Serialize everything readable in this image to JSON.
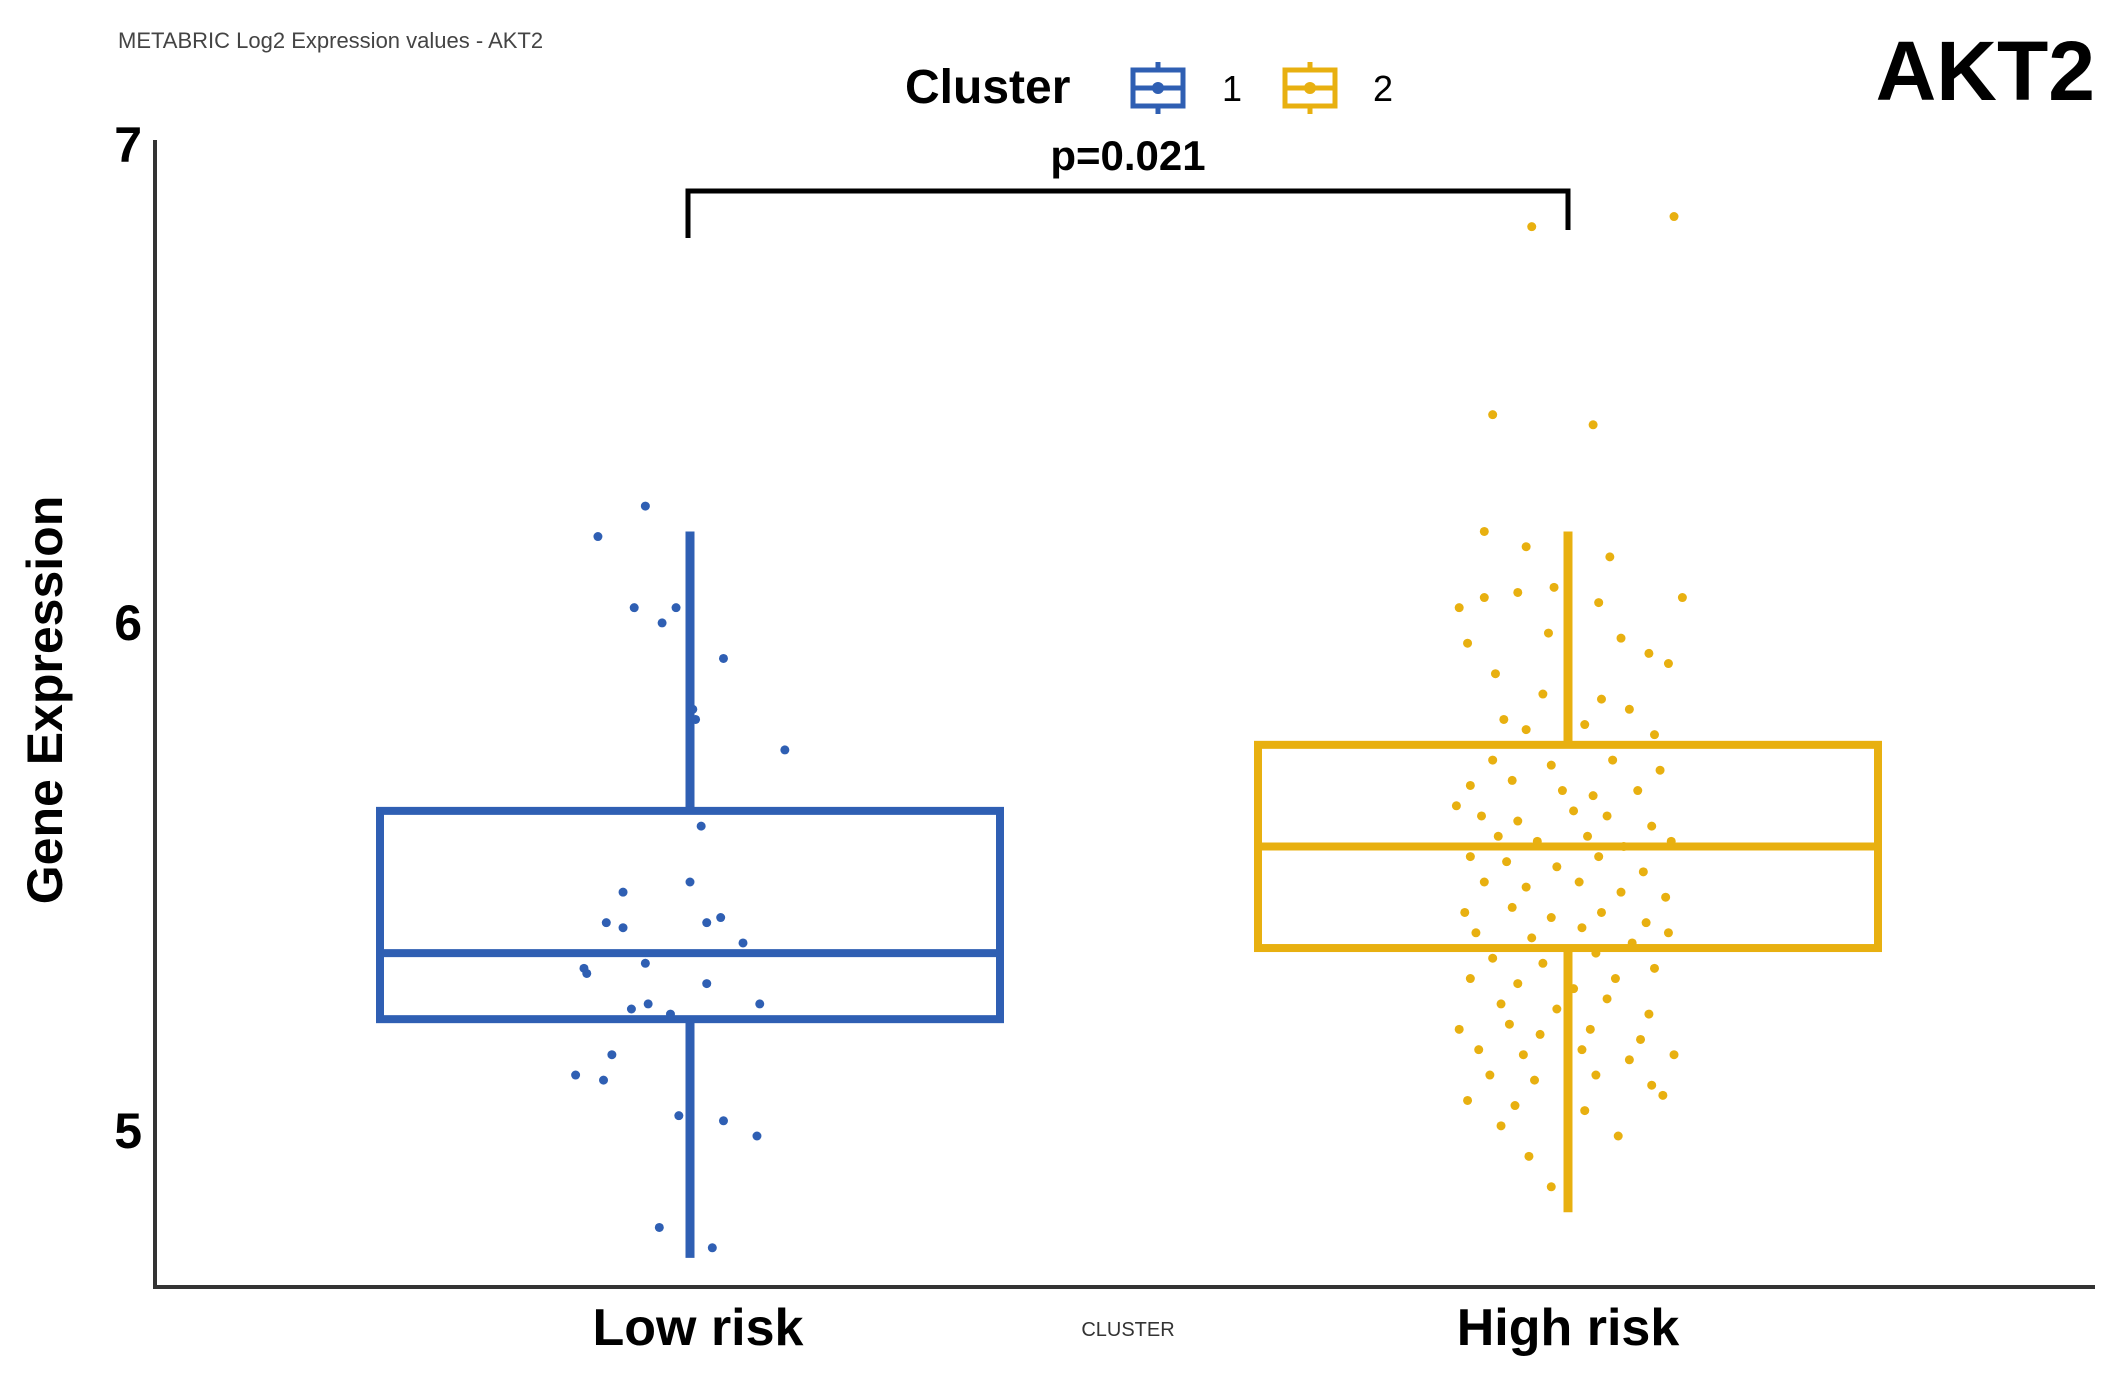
{
  "chart_data": {
    "type": "box",
    "subtitle": "METABRIC Log2 Expression values - AKT2",
    "title": "AKT2",
    "xlabel": "CLUSTER",
    "ylabel": "Gene Expression",
    "ylim": [
      4.7,
      7.0
    ],
    "yticks": [
      "5",
      "6",
      "7"
    ],
    "categories": [
      "Low risk",
      "High risk"
    ],
    "legend": {
      "title": "Cluster",
      "entries": [
        "1",
        "2"
      ],
      "placement": "top-center"
    },
    "colors": [
      "#2f5fb3",
      "#e8b010"
    ],
    "annotation": {
      "text": "p=0.021",
      "between": [
        "Low risk",
        "High risk"
      ]
    },
    "boxes": [
      {
        "name": "Low risk",
        "cluster": "1",
        "whisker_low": 4.76,
        "q1": 5.23,
        "median": 5.36,
        "q3": 5.64,
        "whisker_high": 6.19
      },
      {
        "name": "High risk",
        "cluster": "2",
        "whisker_low": 4.85,
        "q1": 5.37,
        "median": 5.57,
        "q3": 5.77,
        "whisker_high": 6.19
      }
    ],
    "points": [
      [
        [
          -0.33,
          6.18
        ],
        [
          -0.16,
          6.24
        ],
        [
          -0.2,
          6.04
        ],
        [
          -0.05,
          6.04
        ],
        [
          -0.1,
          6.01
        ],
        [
          0.12,
          5.94
        ],
        [
          0.01,
          5.84
        ],
        [
          0.02,
          5.82
        ],
        [
          0.34,
          5.76
        ],
        [
          0.04,
          5.61
        ],
        [
          -0.24,
          5.48
        ],
        [
          0.0,
          5.5
        ],
        [
          -0.3,
          5.42
        ],
        [
          -0.24,
          5.41
        ],
        [
          0.06,
          5.42
        ],
        [
          0.11,
          5.43
        ],
        [
          0.19,
          5.38
        ],
        [
          -0.38,
          5.33
        ],
        [
          -0.37,
          5.32
        ],
        [
          -0.16,
          5.34
        ],
        [
          0.06,
          5.3
        ],
        [
          -0.21,
          5.25
        ],
        [
          -0.15,
          5.26
        ],
        [
          -0.07,
          5.24
        ],
        [
          0.25,
          5.26
        ],
        [
          -0.28,
          5.16
        ],
        [
          -0.41,
          5.12
        ],
        [
          -0.31,
          5.11
        ],
        [
          -0.04,
          5.04
        ],
        [
          0.12,
          5.03
        ],
        [
          0.24,
          5.0
        ],
        [
          -0.11,
          4.82
        ],
        [
          0.08,
          4.78
        ]
      ],
      [
        [
          -0.13,
          6.79
        ],
        [
          0.38,
          6.81
        ],
        [
          -0.27,
          6.42
        ],
        [
          0.09,
          6.4
        ],
        [
          -0.3,
          6.19
        ],
        [
          -0.15,
          6.16
        ],
        [
          0.15,
          6.14
        ],
        [
          -0.18,
          6.07
        ],
        [
          -0.05,
          6.08
        ],
        [
          -0.3,
          6.06
        ],
        [
          0.11,
          6.05
        ],
        [
          -0.39,
          6.04
        ],
        [
          0.41,
          6.06
        ],
        [
          -0.36,
          5.97
        ],
        [
          -0.07,
          5.99
        ],
        [
          0.19,
          5.98
        ],
        [
          0.29,
          5.95
        ],
        [
          -0.26,
          5.91
        ],
        [
          0.36,
          5.93
        ],
        [
          -0.09,
          5.87
        ],
        [
          0.12,
          5.86
        ],
        [
          0.22,
          5.84
        ],
        [
          -0.23,
          5.82
        ],
        [
          -0.15,
          5.8
        ],
        [
          0.06,
          5.81
        ],
        [
          0.31,
          5.79
        ],
        [
          -0.27,
          5.74
        ],
        [
          -0.06,
          5.73
        ],
        [
          0.16,
          5.74
        ],
        [
          0.33,
          5.72
        ],
        [
          -0.35,
          5.69
        ],
        [
          -0.2,
          5.7
        ],
        [
          -0.02,
          5.68
        ],
        [
          0.09,
          5.67
        ],
        [
          0.25,
          5.68
        ],
        [
          -0.4,
          5.65
        ],
        [
          -0.31,
          5.63
        ],
        [
          -0.18,
          5.62
        ],
        [
          0.02,
          5.64
        ],
        [
          0.14,
          5.63
        ],
        [
          0.3,
          5.61
        ],
        [
          -0.25,
          5.59
        ],
        [
          -0.11,
          5.58
        ],
        [
          0.07,
          5.59
        ],
        [
          0.2,
          5.57
        ],
        [
          0.37,
          5.58
        ],
        [
          -0.35,
          5.55
        ],
        [
          -0.22,
          5.54
        ],
        [
          -0.04,
          5.53
        ],
        [
          0.11,
          5.55
        ],
        [
          0.27,
          5.52
        ],
        [
          -0.3,
          5.5
        ],
        [
          -0.15,
          5.49
        ],
        [
          0.04,
          5.5
        ],
        [
          0.19,
          5.48
        ],
        [
          0.35,
          5.47
        ],
        [
          -0.37,
          5.44
        ],
        [
          -0.2,
          5.45
        ],
        [
          -0.06,
          5.43
        ],
        [
          0.12,
          5.44
        ],
        [
          0.28,
          5.42
        ],
        [
          -0.33,
          5.4
        ],
        [
          -0.13,
          5.39
        ],
        [
          0.05,
          5.41
        ],
        [
          0.23,
          5.38
        ],
        [
          0.36,
          5.4
        ],
        [
          -0.27,
          5.35
        ],
        [
          -0.09,
          5.34
        ],
        [
          0.1,
          5.36
        ],
        [
          0.31,
          5.33
        ],
        [
          -0.35,
          5.31
        ],
        [
          -0.18,
          5.3
        ],
        [
          0.02,
          5.29
        ],
        [
          0.17,
          5.31
        ],
        [
          -0.24,
          5.26
        ],
        [
          -0.04,
          5.25
        ],
        [
          0.14,
          5.27
        ],
        [
          0.29,
          5.24
        ],
        [
          -0.39,
          5.21
        ],
        [
          -0.21,
          5.22
        ],
        [
          -0.1,
          5.2
        ],
        [
          0.08,
          5.21
        ],
        [
          0.26,
          5.19
        ],
        [
          -0.32,
          5.17
        ],
        [
          -0.16,
          5.16
        ],
        [
          0.05,
          5.17
        ],
        [
          0.22,
          5.15
        ],
        [
          0.38,
          5.16
        ],
        [
          -0.28,
          5.12
        ],
        [
          -0.12,
          5.11
        ],
        [
          0.1,
          5.12
        ],
        [
          0.3,
          5.1
        ],
        [
          -0.36,
          5.07
        ],
        [
          -0.19,
          5.06
        ],
        [
          0.06,
          5.05
        ],
        [
          0.34,
          5.08
        ],
        [
          -0.24,
          5.02
        ],
        [
          0.18,
          5.0
        ],
        [
          -0.14,
          4.96
        ],
        [
          -0.06,
          4.9
        ]
      ]
    ]
  }
}
